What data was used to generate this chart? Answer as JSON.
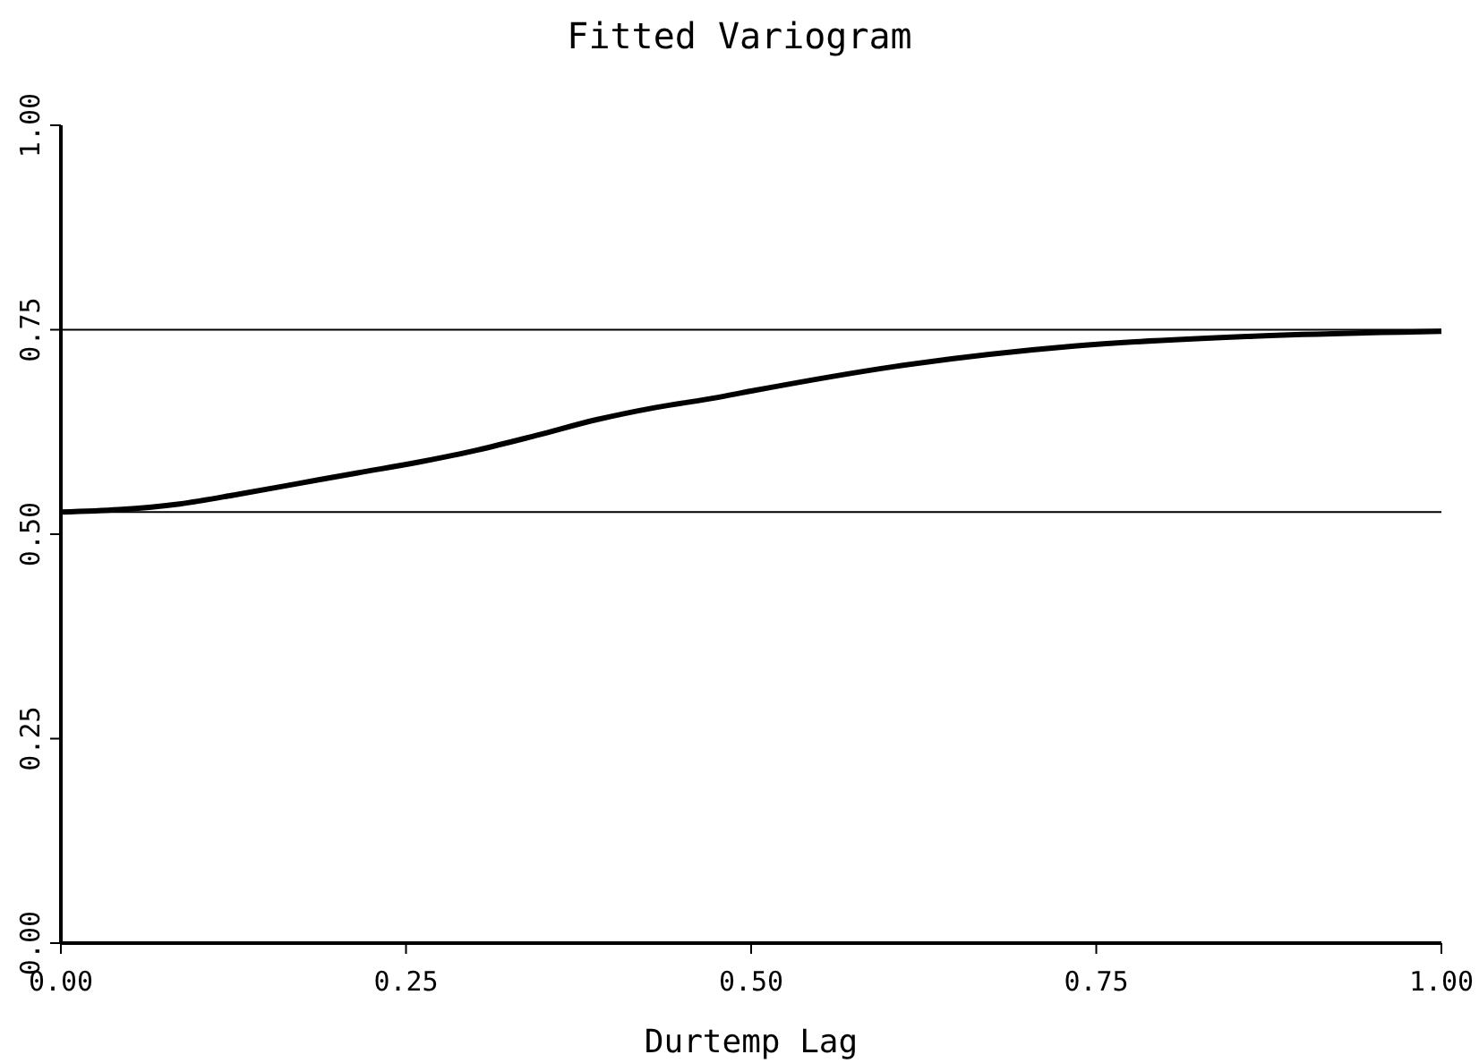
{
  "chart_data": {
    "type": "line",
    "title": "Fitted Variogram",
    "xlabel": "Durtemp Lag",
    "x": [
      0,
      0.042,
      0.086,
      0.129,
      0.172,
      0.215,
      0.259,
      0.302,
      0.345,
      0.388,
      0.431,
      0.475,
      0.5,
      0.604,
      0.734,
      0.864,
      1.0
    ],
    "series": [
      {
        "color": "#000000",
        "values": [
          0.527,
          0.53,
          0.537,
          0.549,
          0.562,
          0.575,
          0.588,
          0.603,
          0.621,
          0.64,
          0.655,
          0.667,
          0.675,
          0.705,
          0.73,
          0.742,
          0.748
        ]
      }
    ],
    "xlim": [
      0,
      1
    ],
    "xticks": [
      {
        "value": 0,
        "label": "0.00"
      },
      {
        "value": 0.25,
        "label": "0.25"
      },
      {
        "value": 0.5,
        "label": "0.50"
      },
      {
        "value": 0.75,
        "label": "0.75"
      },
      {
        "value": 1,
        "label": "1.00"
      }
    ],
    "ylim": [
      0,
      1
    ],
    "yticks": [
      {
        "value": 0,
        "label": "0.00"
      },
      {
        "value": 0.25,
        "label": "0.25"
      },
      {
        "value": 0.5,
        "label": "0.50"
      },
      {
        "value": 0.75,
        "label": "0.75"
      },
      {
        "value": 1,
        "label": "1.00"
      }
    ],
    "ref_lines": [
      {
        "axis": "y",
        "value": 0.75,
        "color": "#000000"
      },
      {
        "axis": "y",
        "value": 0.527,
        "color": "#000000"
      }
    ],
    "grid": false,
    "legend": false,
    "marker": "none",
    "line_style": "solid"
  }
}
